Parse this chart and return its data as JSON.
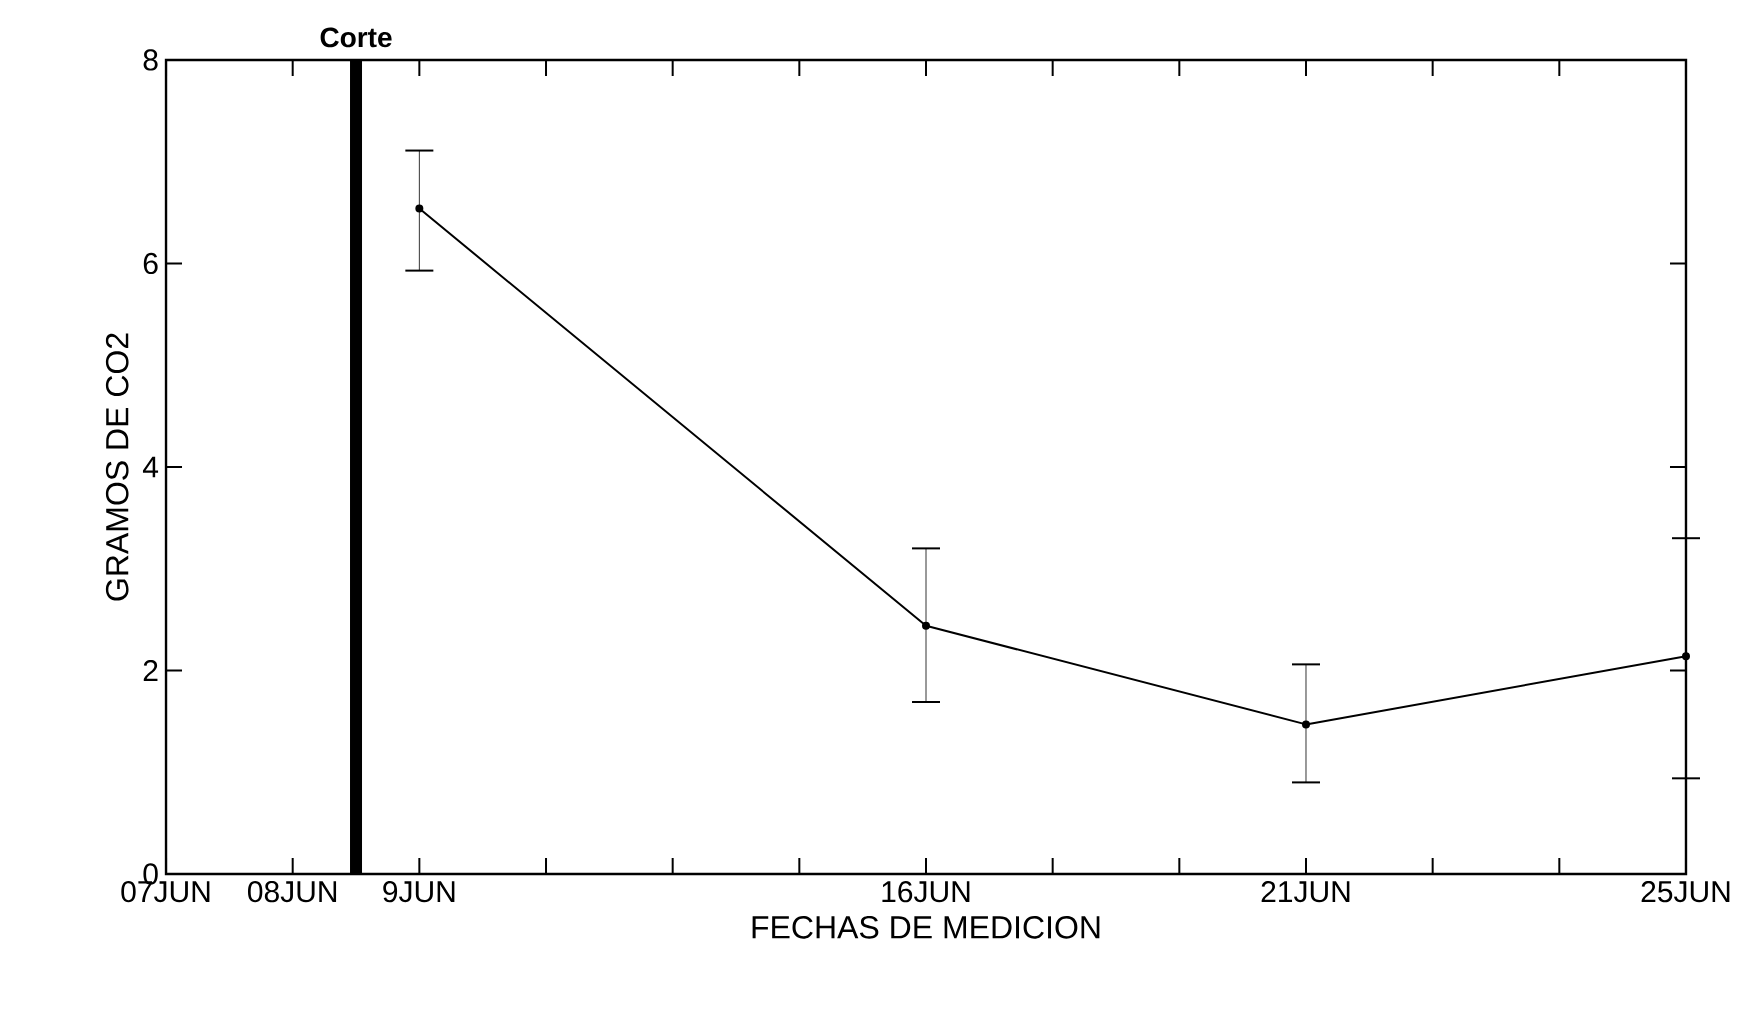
{
  "chart_data": {
    "type": "line",
    "xlabel": "FECHAS DE MEDICION",
    "ylabel": "GRAMOS DE CO2",
    "categories": [
      "07JUN",
      "08JUN",
      "9JUN",
      null,
      null,
      null,
      "16JUN",
      null,
      null,
      "21JUN",
      null,
      null,
      "25JUN"
    ],
    "series": [
      {
        "color": "#000000",
        "values": [
          null,
          null,
          6.54,
          null,
          null,
          null,
          2.44,
          null,
          null,
          1.47,
          null,
          null,
          2.14
        ],
        "errors": [
          null,
          null,
          [
            5.93,
            7.11
          ],
          null,
          null,
          null,
          [
            1.69,
            3.2
          ],
          null,
          null,
          [
            0.9,
            2.06
          ],
          null,
          null,
          [
            0.94,
            3.3
          ]
        ]
      }
    ],
    "ylim": [
      0,
      8
    ],
    "yticks": [
      0,
      2,
      4,
      6,
      8
    ],
    "annotations": [
      "Corte"
    ],
    "marker": "circle",
    "line_style": "solid",
    "grid": false
  }
}
